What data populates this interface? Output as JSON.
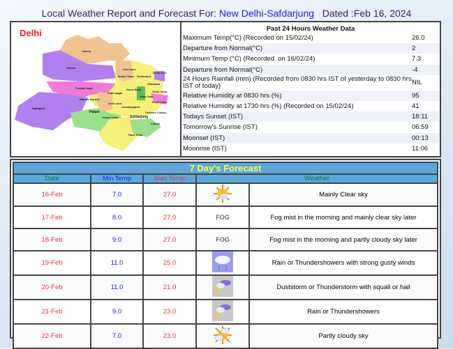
{
  "header": {
    "prefix": "Local Weather Report and Forecast For:",
    "location": "New Delhi-Safdarjung",
    "dated": "Dated :Feb 16, 2024"
  },
  "map": {
    "title": "Delhi",
    "labels": [
      "Narela",
      "Rohini",
      "Civil lines",
      "Model Town",
      "Seelampur",
      "Sewa Puri",
      "Shahdara",
      "Punjabi bagh",
      "Karol Bagh",
      "Patel nagar",
      "Vivek Vihar",
      "Rajouri Garden",
      "India Gate",
      "Preet Vihar",
      "Delhi cant",
      "Chanakyapuri",
      "Najafgarh",
      "Palam",
      "Defence Colony",
      "Vasant Vihar",
      "Safdarjung",
      "Kalkaji",
      "Hauz Khas"
    ]
  },
  "past24": {
    "title": "Past 24 Hours Weather Data",
    "rows": [
      {
        "label": "Maximum Temp(°C) (Recorded on 15/02/24)",
        "value": "26.0"
      },
      {
        "label": "Departure from Normal(°C)",
        "value": "2"
      },
      {
        "label": "Minimum Temp (°C) (Recorded. on 16/02/24)",
        "value": "7.3"
      },
      {
        "label": "Departure from Normal(°C)",
        "value": "-4"
      },
      {
        "label": "24 Hours Rainfall (mm) (Recorded from 0830 hrs IST of yesterday to 0830 hrs IST of today)",
        "value": "NIL"
      },
      {
        "label": "Relative Humidity at 0830 hrs (%)",
        "value": "95"
      },
      {
        "label": "Relative Humidity at 1730 hrs (%) (Recorded on 15/02/24)",
        "value": "41"
      },
      {
        "label": "Todays Sunset (IST)",
        "value": "18:11"
      },
      {
        "label": "Tomorrow's Sunrise (IST)",
        "value": "06:59"
      },
      {
        "label": "Moonset (IST)",
        "value": "00:13"
      },
      {
        "label": "Moonrise (IST)",
        "value": "11:06"
      }
    ]
  },
  "forecast": {
    "title": "7 Day's Forecast",
    "columns": [
      "Date",
      "Min Temp",
      "Max Temp",
      "Weather"
    ],
    "rows": [
      {
        "date": "16-Feb",
        "min": "7.0",
        "max": "27.0",
        "icon": "sun-cloud-icon",
        "weather": "Mainly Clear sky"
      },
      {
        "date": "17-Feb",
        "min": "8.0",
        "max": "27.0",
        "icon": "fog-icon",
        "icon_text": "FOG",
        "weather": "Fog mist in the morning and mainly clear sky later"
      },
      {
        "date": "18-Feb",
        "min": "9.0",
        "max": "27.0",
        "icon": "fog-icon",
        "icon_text": "FOG",
        "weather": "Fog mist in the morning and partly cloudy sky later"
      },
      {
        "date": "19-Feb",
        "min": "11.0",
        "max": "25.0",
        "icon": "rain-cloud-icon",
        "weather": "Rain or Thundershowers with strong gusty winds"
      },
      {
        "date": "20-Feb",
        "min": "11.0",
        "max": "21.0",
        "icon": "thunderstorm-icon",
        "weather": "Duststorm or Thunderstorm with squall or hail"
      },
      {
        "date": "21-Feb",
        "min": "9.0",
        "max": "23.0",
        "icon": "thunderstorm-icon",
        "weather": "Rain or Thundershowers"
      },
      {
        "date": "22-Feb",
        "min": "7.0",
        "max": "23.0",
        "icon": "partly-cloudy-icon",
        "weather": "Partly cloudy sky"
      }
    ]
  }
}
